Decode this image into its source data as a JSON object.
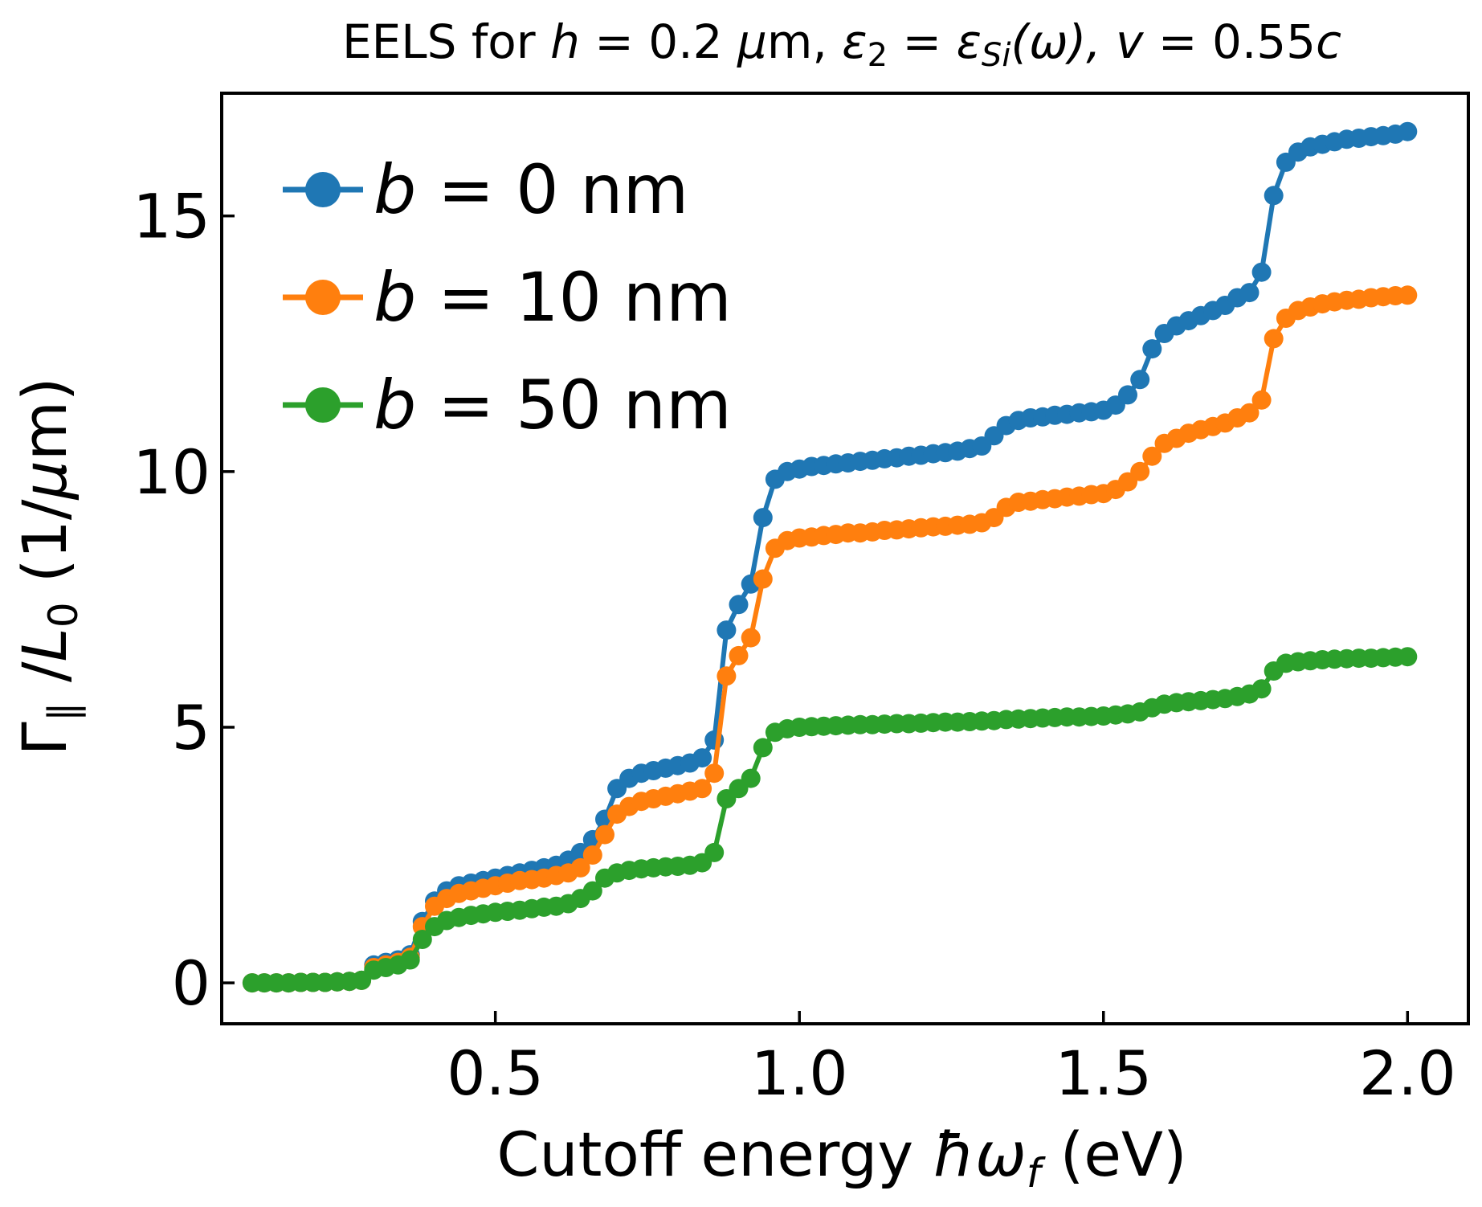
{
  "chart_data": {
    "type": "line",
    "title": {
      "prefix": "EELS for ",
      "h_sym": "h",
      "h_val": " = 0.2 ",
      "unit_mu": "μ",
      "unit_rest": "m, ",
      "eps": "ε",
      "eps_sub": "2",
      "eq": " = ",
      "eps_si_sub": "Si",
      "omega_paren": "(ω), ",
      "v_sym": "v",
      "v_eq": " = 0.55",
      "c_sym": "c"
    },
    "xlabel": {
      "prefix": "Cutoff energy ",
      "hbar": "ħ",
      "omega": "ω",
      "sub": "f",
      "suffix": " (eV)"
    },
    "ylabel": {
      "gamma": "Γ",
      "sub": "∥",
      "slash": " /",
      "L": "L",
      "L_sub": "0",
      "suffix": " (1/",
      "mu": "μ",
      "tail": "m)"
    },
    "xlim": [
      0.05,
      2.1
    ],
    "ylim": [
      -0.8,
      17.4
    ],
    "xticks": [
      0.5,
      1.0,
      1.5,
      2.0
    ],
    "xtick_labels": [
      "0.5",
      "1.0",
      "1.5",
      "2.0"
    ],
    "yticks": [
      0,
      5,
      10,
      15
    ],
    "ytick_labels": [
      "0",
      "5",
      "10",
      "15"
    ],
    "legend_position": "top-left",
    "grid": false,
    "series": [
      {
        "name": "b = 0 nm",
        "legend": {
          "b": "b",
          "rest": " = 0 nm"
        },
        "color": "#1f77b4",
        "points": [
          [
            0.1,
            0.0
          ],
          [
            0.12,
            0.0
          ],
          [
            0.14,
            0.0
          ],
          [
            0.16,
            0.0
          ],
          [
            0.18,
            0.01
          ],
          [
            0.2,
            0.01
          ],
          [
            0.22,
            0.01
          ],
          [
            0.24,
            0.02
          ],
          [
            0.26,
            0.03
          ],
          [
            0.28,
            0.05
          ],
          [
            0.3,
            0.35
          ],
          [
            0.32,
            0.4
          ],
          [
            0.34,
            0.45
          ],
          [
            0.36,
            0.55
          ],
          [
            0.38,
            1.2
          ],
          [
            0.4,
            1.6
          ],
          [
            0.42,
            1.8
          ],
          [
            0.44,
            1.9
          ],
          [
            0.46,
            1.95
          ],
          [
            0.48,
            2.0
          ],
          [
            0.5,
            2.05
          ],
          [
            0.52,
            2.1
          ],
          [
            0.54,
            2.15
          ],
          [
            0.56,
            2.2
          ],
          [
            0.58,
            2.25
          ],
          [
            0.6,
            2.3
          ],
          [
            0.62,
            2.4
          ],
          [
            0.64,
            2.55
          ],
          [
            0.66,
            2.8
          ],
          [
            0.68,
            3.2
          ],
          [
            0.7,
            3.8
          ],
          [
            0.72,
            4.0
          ],
          [
            0.74,
            4.1
          ],
          [
            0.76,
            4.15
          ],
          [
            0.78,
            4.2
          ],
          [
            0.8,
            4.25
          ],
          [
            0.82,
            4.3
          ],
          [
            0.84,
            4.4
          ],
          [
            0.86,
            4.75
          ],
          [
            0.88,
            6.9
          ],
          [
            0.9,
            7.4
          ],
          [
            0.92,
            7.8
          ],
          [
            0.94,
            9.1
          ],
          [
            0.96,
            9.85
          ],
          [
            0.98,
            10.0
          ],
          [
            1.0,
            10.05
          ],
          [
            1.02,
            10.1
          ],
          [
            1.04,
            10.12
          ],
          [
            1.06,
            10.15
          ],
          [
            1.08,
            10.17
          ],
          [
            1.1,
            10.2
          ],
          [
            1.12,
            10.22
          ],
          [
            1.14,
            10.25
          ],
          [
            1.16,
            10.27
          ],
          [
            1.18,
            10.3
          ],
          [
            1.2,
            10.32
          ],
          [
            1.22,
            10.35
          ],
          [
            1.24,
            10.37
          ],
          [
            1.26,
            10.4
          ],
          [
            1.28,
            10.45
          ],
          [
            1.3,
            10.5
          ],
          [
            1.32,
            10.7
          ],
          [
            1.34,
            10.9
          ],
          [
            1.36,
            11.0
          ],
          [
            1.38,
            11.05
          ],
          [
            1.4,
            11.07
          ],
          [
            1.42,
            11.1
          ],
          [
            1.44,
            11.12
          ],
          [
            1.46,
            11.15
          ],
          [
            1.48,
            11.17
          ],
          [
            1.5,
            11.2
          ],
          [
            1.52,
            11.3
          ],
          [
            1.54,
            11.5
          ],
          [
            1.56,
            11.8
          ],
          [
            1.58,
            12.4
          ],
          [
            1.6,
            12.7
          ],
          [
            1.62,
            12.85
          ],
          [
            1.64,
            12.95
          ],
          [
            1.66,
            13.05
          ],
          [
            1.68,
            13.15
          ],
          [
            1.7,
            13.25
          ],
          [
            1.72,
            13.4
          ],
          [
            1.74,
            13.5
          ],
          [
            1.76,
            13.9
          ],
          [
            1.78,
            15.4
          ],
          [
            1.8,
            16.05
          ],
          [
            1.82,
            16.25
          ],
          [
            1.84,
            16.35
          ],
          [
            1.86,
            16.4
          ],
          [
            1.88,
            16.45
          ],
          [
            1.9,
            16.5
          ],
          [
            1.92,
            16.52
          ],
          [
            1.94,
            16.55
          ],
          [
            1.96,
            16.57
          ],
          [
            1.98,
            16.6
          ],
          [
            2.0,
            16.65
          ]
        ]
      },
      {
        "name": "b = 10 nm",
        "legend": {
          "b": "b",
          "rest": " = 10 nm"
        },
        "color": "#ff7f0e",
        "points": [
          [
            0.1,
            0.0
          ],
          [
            0.12,
            0.0
          ],
          [
            0.14,
            0.0
          ],
          [
            0.16,
            0.0
          ],
          [
            0.18,
            0.01
          ],
          [
            0.2,
            0.01
          ],
          [
            0.22,
            0.01
          ],
          [
            0.24,
            0.02
          ],
          [
            0.26,
            0.03
          ],
          [
            0.28,
            0.05
          ],
          [
            0.3,
            0.3
          ],
          [
            0.32,
            0.35
          ],
          [
            0.34,
            0.4
          ],
          [
            0.36,
            0.5
          ],
          [
            0.38,
            1.1
          ],
          [
            0.4,
            1.5
          ],
          [
            0.42,
            1.65
          ],
          [
            0.44,
            1.75
          ],
          [
            0.46,
            1.8
          ],
          [
            0.48,
            1.85
          ],
          [
            0.5,
            1.9
          ],
          [
            0.52,
            1.95
          ],
          [
            0.54,
            2.0
          ],
          [
            0.56,
            2.02
          ],
          [
            0.58,
            2.05
          ],
          [
            0.6,
            2.1
          ],
          [
            0.62,
            2.15
          ],
          [
            0.64,
            2.25
          ],
          [
            0.66,
            2.5
          ],
          [
            0.68,
            2.9
          ],
          [
            0.7,
            3.3
          ],
          [
            0.72,
            3.45
          ],
          [
            0.74,
            3.55
          ],
          [
            0.76,
            3.6
          ],
          [
            0.78,
            3.65
          ],
          [
            0.8,
            3.7
          ],
          [
            0.82,
            3.75
          ],
          [
            0.84,
            3.8
          ],
          [
            0.86,
            4.1
          ],
          [
            0.88,
            6.0
          ],
          [
            0.9,
            6.4
          ],
          [
            0.92,
            6.75
          ],
          [
            0.94,
            7.9
          ],
          [
            0.96,
            8.5
          ],
          [
            0.98,
            8.65
          ],
          [
            1.0,
            8.7
          ],
          [
            1.02,
            8.72
          ],
          [
            1.04,
            8.75
          ],
          [
            1.06,
            8.77
          ],
          [
            1.08,
            8.8
          ],
          [
            1.1,
            8.8
          ],
          [
            1.12,
            8.82
          ],
          [
            1.14,
            8.85
          ],
          [
            1.16,
            8.86
          ],
          [
            1.18,
            8.88
          ],
          [
            1.2,
            8.9
          ],
          [
            1.22,
            8.92
          ],
          [
            1.24,
            8.93
          ],
          [
            1.26,
            8.95
          ],
          [
            1.28,
            8.97
          ],
          [
            1.3,
            9.0
          ],
          [
            1.32,
            9.1
          ],
          [
            1.34,
            9.3
          ],
          [
            1.36,
            9.4
          ],
          [
            1.38,
            9.42
          ],
          [
            1.4,
            9.45
          ],
          [
            1.42,
            9.47
          ],
          [
            1.44,
            9.5
          ],
          [
            1.46,
            9.52
          ],
          [
            1.48,
            9.55
          ],
          [
            1.5,
            9.57
          ],
          [
            1.52,
            9.65
          ],
          [
            1.54,
            9.8
          ],
          [
            1.56,
            10.0
          ],
          [
            1.58,
            10.3
          ],
          [
            1.6,
            10.55
          ],
          [
            1.62,
            10.65
          ],
          [
            1.64,
            10.75
          ],
          [
            1.66,
            10.82
          ],
          [
            1.68,
            10.88
          ],
          [
            1.7,
            10.95
          ],
          [
            1.72,
            11.05
          ],
          [
            1.74,
            11.15
          ],
          [
            1.76,
            11.4
          ],
          [
            1.78,
            12.6
          ],
          [
            1.8,
            13.0
          ],
          [
            1.82,
            13.15
          ],
          [
            1.84,
            13.22
          ],
          [
            1.86,
            13.28
          ],
          [
            1.88,
            13.32
          ],
          [
            1.9,
            13.35
          ],
          [
            1.92,
            13.37
          ],
          [
            1.94,
            13.4
          ],
          [
            1.96,
            13.42
          ],
          [
            1.98,
            13.44
          ],
          [
            2.0,
            13.45
          ]
        ]
      },
      {
        "name": "b = 50 nm",
        "legend": {
          "b": "b",
          "rest": " = 50 nm"
        },
        "color": "#2ca02c",
        "points": [
          [
            0.1,
            0.0
          ],
          [
            0.12,
            0.0
          ],
          [
            0.14,
            0.0
          ],
          [
            0.16,
            0.0
          ],
          [
            0.18,
            0.01
          ],
          [
            0.2,
            0.01
          ],
          [
            0.22,
            0.01
          ],
          [
            0.24,
            0.02
          ],
          [
            0.26,
            0.03
          ],
          [
            0.28,
            0.05
          ],
          [
            0.3,
            0.25
          ],
          [
            0.32,
            0.3
          ],
          [
            0.34,
            0.35
          ],
          [
            0.36,
            0.45
          ],
          [
            0.38,
            0.85
          ],
          [
            0.4,
            1.1
          ],
          [
            0.42,
            1.22
          ],
          [
            0.44,
            1.28
          ],
          [
            0.46,
            1.32
          ],
          [
            0.48,
            1.35
          ],
          [
            0.5,
            1.38
          ],
          [
            0.52,
            1.4
          ],
          [
            0.54,
            1.42
          ],
          [
            0.56,
            1.45
          ],
          [
            0.58,
            1.48
          ],
          [
            0.6,
            1.5
          ],
          [
            0.62,
            1.55
          ],
          [
            0.64,
            1.65
          ],
          [
            0.66,
            1.8
          ],
          [
            0.68,
            2.05
          ],
          [
            0.7,
            2.15
          ],
          [
            0.72,
            2.2
          ],
          [
            0.74,
            2.23
          ],
          [
            0.76,
            2.25
          ],
          [
            0.78,
            2.27
          ],
          [
            0.8,
            2.28
          ],
          [
            0.82,
            2.3
          ],
          [
            0.84,
            2.35
          ],
          [
            0.86,
            2.55
          ],
          [
            0.88,
            3.6
          ],
          [
            0.9,
            3.8
          ],
          [
            0.92,
            4.0
          ],
          [
            0.94,
            4.6
          ],
          [
            0.96,
            4.9
          ],
          [
            0.98,
            4.97
          ],
          [
            1.0,
            5.0
          ],
          [
            1.02,
            5.01
          ],
          [
            1.04,
            5.02
          ],
          [
            1.06,
            5.03
          ],
          [
            1.08,
            5.04
          ],
          [
            1.1,
            5.05
          ],
          [
            1.12,
            5.05
          ],
          [
            1.14,
            5.06
          ],
          [
            1.16,
            5.07
          ],
          [
            1.18,
            5.07
          ],
          [
            1.2,
            5.08
          ],
          [
            1.22,
            5.09
          ],
          [
            1.24,
            5.1
          ],
          [
            1.26,
            5.1
          ],
          [
            1.28,
            5.11
          ],
          [
            1.3,
            5.12
          ],
          [
            1.32,
            5.13
          ],
          [
            1.34,
            5.15
          ],
          [
            1.36,
            5.16
          ],
          [
            1.38,
            5.17
          ],
          [
            1.4,
            5.18
          ],
          [
            1.42,
            5.19
          ],
          [
            1.44,
            5.2
          ],
          [
            1.46,
            5.2
          ],
          [
            1.48,
            5.21
          ],
          [
            1.5,
            5.22
          ],
          [
            1.52,
            5.24
          ],
          [
            1.54,
            5.26
          ],
          [
            1.56,
            5.3
          ],
          [
            1.58,
            5.38
          ],
          [
            1.6,
            5.45
          ],
          [
            1.62,
            5.48
          ],
          [
            1.64,
            5.5
          ],
          [
            1.66,
            5.52
          ],
          [
            1.68,
            5.54
          ],
          [
            1.7,
            5.56
          ],
          [
            1.72,
            5.6
          ],
          [
            1.74,
            5.65
          ],
          [
            1.76,
            5.75
          ],
          [
            1.78,
            6.1
          ],
          [
            1.8,
            6.25
          ],
          [
            1.82,
            6.28
          ],
          [
            1.84,
            6.3
          ],
          [
            1.86,
            6.32
          ],
          [
            1.88,
            6.33
          ],
          [
            1.9,
            6.34
          ],
          [
            1.92,
            6.35
          ],
          [
            1.94,
            6.35
          ],
          [
            1.96,
            6.36
          ],
          [
            1.98,
            6.37
          ],
          [
            2.0,
            6.38
          ]
        ]
      }
    ]
  }
}
